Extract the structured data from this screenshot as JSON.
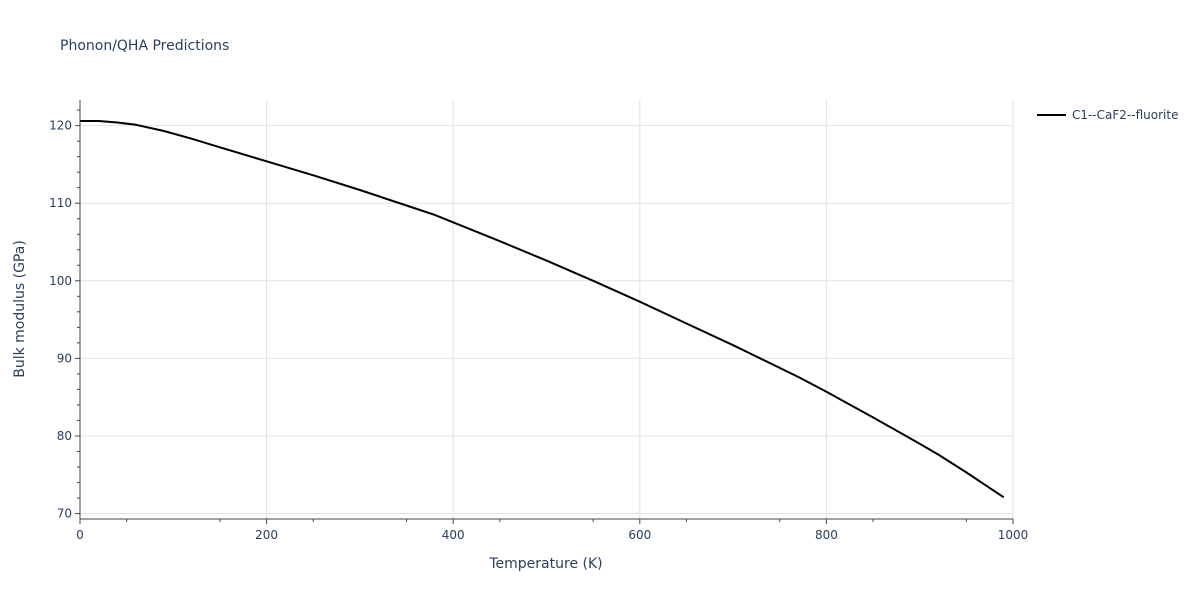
{
  "chart_data": {
    "type": "line",
    "title": "Phonon/QHA Predictions",
    "xlabel": "Temperature (K)",
    "ylabel": "Bulk modulus (GPa)",
    "xlim": [
      0,
      1000
    ],
    "ylim": [
      69.3,
      123.3
    ],
    "x_ticks": [
      0,
      200,
      400,
      600,
      800,
      1000
    ],
    "y_ticks": [
      70,
      80,
      90,
      100,
      110,
      120
    ],
    "grid": true,
    "legend_position": "top-right",
    "series": [
      {
        "name": "C1--CaF2--fluorite",
        "color": "#000000",
        "x": [
          0,
          20,
          40,
          60,
          90,
          120,
          150,
          200,
          250,
          300,
          350,
          380,
          450,
          500,
          550,
          600,
          650,
          700,
          770,
          800,
          850,
          900,
          920,
          950,
          990
        ],
        "y": [
          120.6,
          120.6,
          120.4,
          120.1,
          119.3,
          118.3,
          117.2,
          115.4,
          113.6,
          111.7,
          109.7,
          108.5,
          105.1,
          102.6,
          100.0,
          97.3,
          94.5,
          91.7,
          87.6,
          85.7,
          82.4,
          79.0,
          77.6,
          75.3,
          72.1
        ]
      }
    ]
  }
}
